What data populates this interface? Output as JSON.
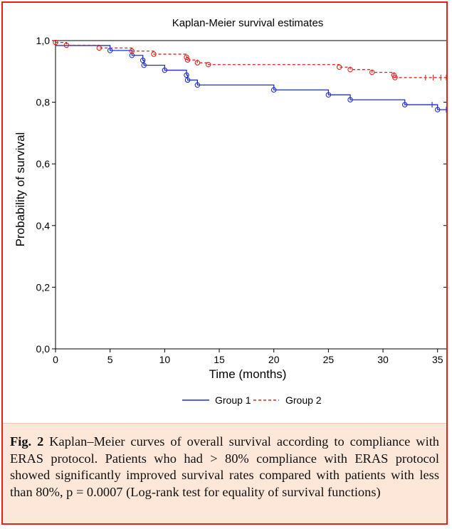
{
  "chart_data": {
    "type": "line",
    "title": "Kaplan-Meier survival estimates",
    "xlabel": "Time (months)",
    "ylabel": "Probability of survival",
    "xlim": [
      0,
      35.8
    ],
    "ylim": [
      0,
      1
    ],
    "xticks": [
      0,
      5,
      10,
      15,
      20,
      25,
      30,
      35
    ],
    "yticks": [
      0,
      0.2,
      0.4,
      0.6,
      0.8,
      1.0
    ],
    "xtick_labels": [
      "0",
      "5",
      "10",
      "15",
      "20",
      "25",
      "30",
      "35"
    ],
    "ytick_labels": [
      "0,0",
      "0,2",
      "0,4",
      "0,6",
      "0,8",
      "1,0"
    ],
    "legend_position": "bottom",
    "series": [
      {
        "name": "Group 1",
        "color": "#1f2fd0",
        "line_style": "solid",
        "steps": [
          [
            0,
            0.984
          ],
          [
            5,
            0.968
          ],
          [
            7,
            0.952
          ],
          [
            8,
            0.936
          ],
          [
            8.1,
            0.92
          ],
          [
            10,
            0.904
          ],
          [
            12,
            0.888
          ],
          [
            12.1,
            0.872
          ],
          [
            13,
            0.856
          ],
          [
            20,
            0.84
          ],
          [
            25,
            0.824
          ],
          [
            27,
            0.808
          ],
          [
            32,
            0.792
          ],
          [
            35,
            0.776
          ]
        ],
        "end_x": 35.8,
        "censored": [
          34.5,
          35.8
        ],
        "event_markers": [
          5,
          7,
          8,
          8.1,
          10,
          12,
          12.1,
          13,
          20,
          25,
          27,
          32,
          35
        ]
      },
      {
        "name": "Group 2",
        "color": "#e2231a",
        "line_style": "dashed",
        "steps": [
          [
            0,
            0.994
          ],
          [
            1,
            0.985
          ],
          [
            4,
            0.976
          ],
          [
            7,
            0.966
          ],
          [
            9,
            0.956
          ],
          [
            12,
            0.946
          ],
          [
            12.1,
            0.937
          ],
          [
            13,
            0.928
          ],
          [
            14,
            0.922
          ],
          [
            26,
            0.914
          ],
          [
            27,
            0.906
          ],
          [
            29,
            0.897
          ],
          [
            31,
            0.888
          ],
          [
            31.1,
            0.88
          ]
        ],
        "end_x": 35.8,
        "censored": [
          33.9,
          34.6,
          35.3,
          35.8
        ],
        "event_markers": [
          0,
          1,
          4,
          7,
          9,
          12,
          12.1,
          13,
          14,
          26,
          27,
          29,
          31,
          31.1
        ]
      }
    ]
  },
  "caption": {
    "label": "Fig. 2",
    "text": "Kaplan–Meier curves of overall survival according to compliance with ERAS protocol. Patients who had > 80% compliance with ERAS protocol showed significantly improved survival rates compared with patients with less than 80%, p = 0.0007 (Log-rank test for equality of survival functions)"
  }
}
